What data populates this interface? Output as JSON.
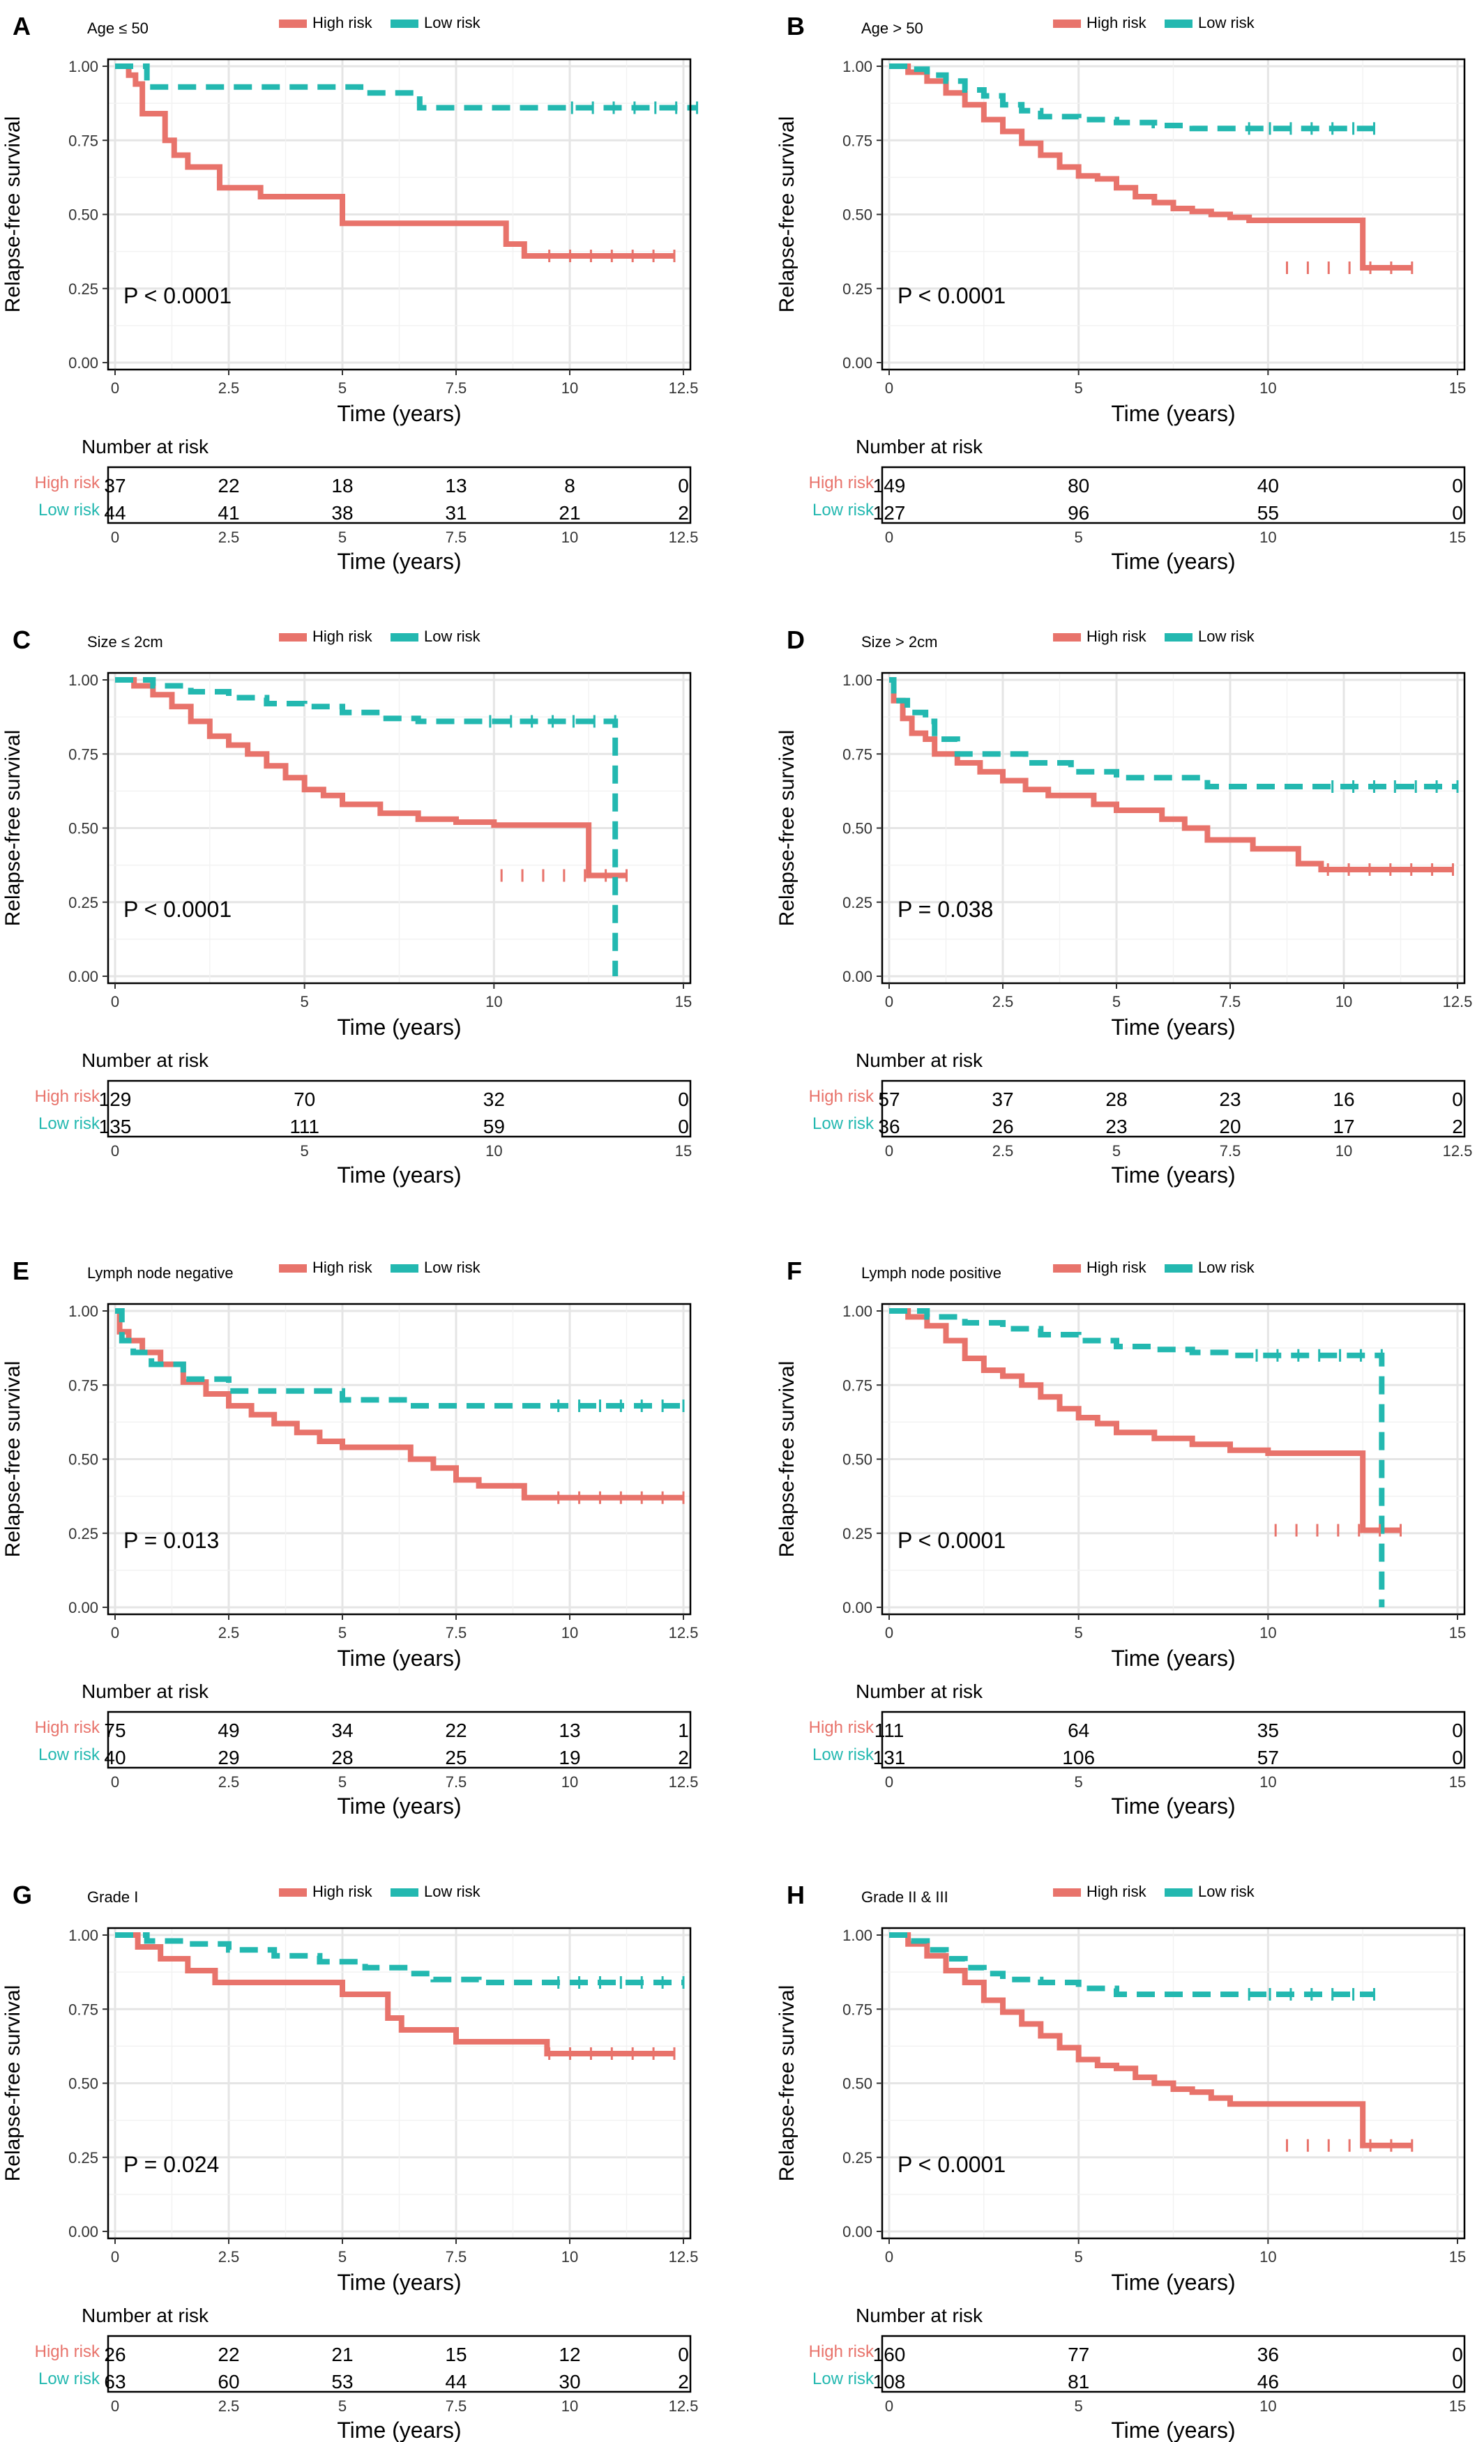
{
  "figure": {
    "legend": {
      "high_label": "High risk",
      "low_label": "Low risk"
    },
    "ylabel": "Relapse-free survival",
    "xlabel": "Time (years)",
    "risk_table_title": "Number at risk",
    "colors": {
      "high": "#E8736B",
      "low": "#23B8B0",
      "frame": "#000000",
      "grid": "#E5E5E5"
    }
  },
  "chart_data": [
    {
      "type": "line",
      "panel": "A",
      "subtitle": "Age ≤ 50",
      "pvalue": "P < 0.0001",
      "xlim": [
        0,
        12.5
      ],
      "ylim": [
        0,
        1
      ],
      "xticks": [
        "0",
        "2.5",
        "5",
        "7.5",
        "10",
        "12.5"
      ],
      "yticks": [
        "0.00",
        "0.25",
        "0.50",
        "0.75",
        "1.00"
      ],
      "series": [
        {
          "name": "High risk",
          "x": [
            0,
            0.3,
            0.45,
            0.6,
            0.9,
            1.1,
            1.3,
            1.6,
            2.3,
            3.2,
            5,
            6,
            7,
            8.2,
            8.6,
            9,
            12.3
          ],
          "y": [
            1,
            0.97,
            0.94,
            0.84,
            0.84,
            0.75,
            0.7,
            0.66,
            0.59,
            0.56,
            0.47,
            0.47,
            0.47,
            0.47,
            0.4,
            0.36,
            0.36
          ]
        },
        {
          "name": "Low risk",
          "x": [
            0,
            0.7,
            5.4,
            6.7,
            12.8
          ],
          "y": [
            1,
            0.93,
            0.91,
            0.86,
            0.86
          ]
        }
      ],
      "risk_times": [
        "0",
        "2.5",
        "5",
        "7.5",
        "10",
        "12.5"
      ],
      "risk_high": [
        "37",
        "22",
        "18",
        "13",
        "8",
        "0"
      ],
      "risk_low": [
        "44",
        "41",
        "38",
        "31",
        "21",
        "2"
      ]
    },
    {
      "type": "line",
      "panel": "B",
      "subtitle": "Age > 50",
      "pvalue": "P < 0.0001",
      "xlim": [
        0,
        15
      ],
      "ylim": [
        0,
        1
      ],
      "xticks": [
        "0",
        "5",
        "10",
        "15"
      ],
      "yticks": [
        "0.00",
        "0.25",
        "0.50",
        "0.75",
        "1.00"
      ],
      "series": [
        {
          "name": "High risk",
          "x": [
            0,
            0.5,
            1,
            1.5,
            2,
            2.5,
            3,
            3.5,
            4,
            4.5,
            5,
            5.5,
            6,
            6.5,
            7,
            7.5,
            8,
            8.5,
            9,
            9.5,
            10,
            11,
            12.5,
            13.8
          ],
          "y": [
            1,
            0.98,
            0.95,
            0.91,
            0.87,
            0.82,
            0.78,
            0.74,
            0.7,
            0.66,
            0.63,
            0.62,
            0.59,
            0.56,
            0.54,
            0.52,
            0.51,
            0.5,
            0.49,
            0.48,
            0.48,
            0.48,
            0.32,
            0.32
          ]
        },
        {
          "name": "Low risk",
          "x": [
            0,
            0.5,
            1,
            1.5,
            2,
            2.5,
            3,
            3.5,
            4,
            5,
            6,
            7,
            8,
            9,
            10,
            11,
            12.8
          ],
          "y": [
            1,
            0.99,
            0.97,
            0.95,
            0.92,
            0.9,
            0.87,
            0.85,
            0.83,
            0.82,
            0.81,
            0.8,
            0.79,
            0.79,
            0.79,
            0.79,
            0.79
          ]
        }
      ],
      "risk_times": [
        "0",
        "5",
        "10",
        "15"
      ],
      "risk_high": [
        "149",
        "80",
        "40",
        "0"
      ],
      "risk_low": [
        "127",
        "96",
        "55",
        "0"
      ]
    },
    {
      "type": "line",
      "panel": "C",
      "subtitle": "Size ≤ 2cm",
      "pvalue": "P < 0.0001",
      "xlim": [
        0,
        15
      ],
      "ylim": [
        0,
        1
      ],
      "xticks": [
        "0",
        "5",
        "10",
        "15"
      ],
      "yticks": [
        "0.00",
        "0.25",
        "0.50",
        "0.75",
        "1.00"
      ],
      "series": [
        {
          "name": "High risk",
          "x": [
            0,
            0.5,
            1,
            1.5,
            2,
            2.5,
            3,
            3.5,
            4,
            4.5,
            5,
            5.5,
            6,
            7,
            8,
            9,
            10,
            11,
            12.5,
            13.5
          ],
          "y": [
            1,
            0.98,
            0.95,
            0.91,
            0.86,
            0.81,
            0.78,
            0.75,
            0.71,
            0.67,
            0.63,
            0.61,
            0.58,
            0.55,
            0.53,
            0.52,
            0.51,
            0.51,
            0.34,
            0.34
          ]
        },
        {
          "name": "Low risk",
          "x": [
            0,
            1,
            2,
            3,
            4,
            5,
            6,
            7,
            8,
            9,
            10,
            11,
            12,
            13.2,
            13.2
          ],
          "y": [
            1,
            0.98,
            0.96,
            0.94,
            0.92,
            0.91,
            0.89,
            0.87,
            0.86,
            0.86,
            0.86,
            0.86,
            0.86,
            0.86,
            0
          ]
        }
      ],
      "risk_times": [
        "0",
        "5",
        "10",
        "15"
      ],
      "risk_high": [
        "129",
        "70",
        "32",
        "0"
      ],
      "risk_low": [
        "135",
        "111",
        "59",
        "0"
      ]
    },
    {
      "type": "line",
      "panel": "D",
      "subtitle": "Size > 2cm",
      "pvalue": "P = 0.038",
      "xlim": [
        0,
        12.5
      ],
      "ylim": [
        0,
        1
      ],
      "xticks": [
        "0",
        "2.5",
        "5",
        "7.5",
        "10",
        "12.5"
      ],
      "yticks": [
        "0.00",
        "0.25",
        "0.50",
        "0.75",
        "1.00"
      ],
      "series": [
        {
          "name": "High risk",
          "x": [
            0,
            0.1,
            0.3,
            0.5,
            0.8,
            1,
            1.5,
            2,
            2.5,
            3,
            3.5,
            4,
            4.5,
            5,
            6,
            6.5,
            7,
            8,
            9,
            9.5,
            10,
            11,
            12.4
          ],
          "y": [
            1,
            0.93,
            0.87,
            0.82,
            0.8,
            0.75,
            0.72,
            0.69,
            0.66,
            0.63,
            0.61,
            0.61,
            0.58,
            0.56,
            0.53,
            0.5,
            0.46,
            0.43,
            0.38,
            0.36,
            0.36,
            0.36,
            0.36
          ]
        },
        {
          "name": "Low risk",
          "x": [
            0,
            0.1,
            0.4,
            0.8,
            1,
            1.5,
            2,
            3,
            4,
            5,
            6,
            7,
            8,
            9,
            10,
            11,
            12.5
          ],
          "y": [
            1,
            0.93,
            0.89,
            0.86,
            0.8,
            0.75,
            0.75,
            0.72,
            0.69,
            0.67,
            0.67,
            0.64,
            0.64,
            0.64,
            0.64,
            0.64,
            0.64
          ]
        }
      ],
      "risk_times": [
        "0",
        "2.5",
        "5",
        "7.5",
        "10",
        "12.5"
      ],
      "risk_high": [
        "57",
        "37",
        "28",
        "23",
        "16",
        "0"
      ],
      "risk_low": [
        "36",
        "26",
        "23",
        "20",
        "17",
        "2"
      ]
    },
    {
      "type": "line",
      "panel": "E",
      "subtitle": "Lymph node negative",
      "pvalue": "P = 0.013",
      "xlim": [
        0,
        12.5
      ],
      "ylim": [
        0,
        1
      ],
      "xticks": [
        "0",
        "2.5",
        "5",
        "7.5",
        "10",
        "12.5"
      ],
      "yticks": [
        "0.00",
        "0.25",
        "0.50",
        "0.75",
        "1.00"
      ],
      "series": [
        {
          "name": "High risk",
          "x": [
            0,
            0.1,
            0.3,
            0.6,
            1,
            1.5,
            2,
            2.5,
            3,
            3.5,
            4,
            4.5,
            5,
            6,
            6.5,
            7,
            7.5,
            8,
            9,
            10,
            11,
            12.5
          ],
          "y": [
            1,
            0.93,
            0.9,
            0.86,
            0.82,
            0.76,
            0.72,
            0.68,
            0.65,
            0.62,
            0.59,
            0.56,
            0.54,
            0.54,
            0.5,
            0.47,
            0.43,
            0.41,
            0.37,
            0.37,
            0.37,
            0.37
          ]
        },
        {
          "name": "Low risk",
          "x": [
            0,
            0.15,
            0.4,
            0.8,
            1.5,
            2.5,
            4,
            5,
            6.5,
            7.5,
            8.5,
            10,
            11,
            12.5
          ],
          "y": [
            1,
            0.9,
            0.86,
            0.82,
            0.77,
            0.73,
            0.73,
            0.7,
            0.68,
            0.68,
            0.68,
            0.68,
            0.68,
            0.68
          ]
        }
      ],
      "risk_times": [
        "0",
        "2.5",
        "5",
        "7.5",
        "10",
        "12.5"
      ],
      "risk_high": [
        "75",
        "49",
        "34",
        "22",
        "13",
        "1"
      ],
      "risk_low": [
        "40",
        "29",
        "28",
        "25",
        "19",
        "2"
      ]
    },
    {
      "type": "line",
      "panel": "F",
      "subtitle": "Lymph node positive",
      "pvalue": "P < 0.0001",
      "xlim": [
        0,
        15
      ],
      "ylim": [
        0,
        1
      ],
      "xticks": [
        "0",
        "5",
        "10",
        "15"
      ],
      "yticks": [
        "0.00",
        "0.25",
        "0.50",
        "0.75",
        "1.00"
      ],
      "series": [
        {
          "name": "High risk",
          "x": [
            0,
            0.5,
            1,
            1.5,
            2,
            2.5,
            3,
            3.5,
            4,
            4.5,
            5,
            5.5,
            6,
            7,
            8,
            9,
            10,
            11,
            12.5,
            13.5
          ],
          "y": [
            1,
            0.98,
            0.95,
            0.9,
            0.84,
            0.8,
            0.78,
            0.75,
            0.71,
            0.67,
            0.64,
            0.62,
            0.59,
            0.57,
            0.55,
            0.53,
            0.52,
            0.52,
            0.26,
            0.26
          ]
        },
        {
          "name": "Low risk",
          "x": [
            0,
            1,
            2,
            3,
            4,
            5,
            6,
            7,
            8,
            9,
            10,
            11,
            12,
            13,
            13,
            13
          ],
          "y": [
            1,
            0.98,
            0.96,
            0.94,
            0.92,
            0.9,
            0.88,
            0.87,
            0.86,
            0.85,
            0.85,
            0.85,
            0.85,
            0.85,
            0.85,
            0
          ]
        }
      ],
      "risk_times": [
        "0",
        "5",
        "10",
        "15"
      ],
      "risk_high": [
        "111",
        "64",
        "35",
        "0"
      ],
      "risk_low": [
        "131",
        "106",
        "57",
        "0"
      ]
    },
    {
      "type": "line",
      "panel": "G",
      "subtitle": "Grade I",
      "pvalue": "P = 0.024",
      "xlim": [
        0,
        12.5
      ],
      "ylim": [
        0,
        1
      ],
      "xticks": [
        "0",
        "2.5",
        "5",
        "7.5",
        "10",
        "12.5"
      ],
      "yticks": [
        "0.00",
        "0.25",
        "0.50",
        "0.75",
        "1.00"
      ],
      "series": [
        {
          "name": "High risk",
          "x": [
            0,
            0.5,
            1,
            1.6,
            2.2,
            3,
            4,
            5,
            5.5,
            6,
            6.3,
            7,
            7.5,
            8,
            9,
            9.5,
            10,
            11,
            12.3
          ],
          "y": [
            1,
            0.96,
            0.92,
            0.88,
            0.84,
            0.84,
            0.84,
            0.8,
            0.8,
            0.72,
            0.68,
            0.68,
            0.64,
            0.64,
            0.64,
            0.6,
            0.6,
            0.6,
            0.6
          ]
        },
        {
          "name": "Low risk",
          "x": [
            0,
            0.7,
            1.5,
            2.5,
            3.5,
            4.5,
            5.5,
            6.5,
            7,
            8,
            9,
            10,
            11,
            12.5
          ],
          "y": [
            1,
            0.98,
            0.97,
            0.95,
            0.93,
            0.91,
            0.89,
            0.87,
            0.85,
            0.84,
            0.84,
            0.84,
            0.84,
            0.84
          ]
        }
      ],
      "risk_times": [
        "0",
        "2.5",
        "5",
        "7.5",
        "10",
        "12.5"
      ],
      "risk_high": [
        "26",
        "22",
        "21",
        "15",
        "12",
        "0"
      ],
      "risk_low": [
        "63",
        "60",
        "53",
        "44",
        "30",
        "2"
      ]
    },
    {
      "type": "line",
      "panel": "H",
      "subtitle": "Grade II & III",
      "pvalue": "P < 0.0001",
      "xlim": [
        0,
        15
      ],
      "ylim": [
        0,
        1
      ],
      "xticks": [
        "0",
        "5",
        "10",
        "15"
      ],
      "yticks": [
        "0.00",
        "0.25",
        "0.50",
        "0.75",
        "1.00"
      ],
      "series": [
        {
          "name": "High risk",
          "x": [
            0,
            0.5,
            1,
            1.5,
            2,
            2.5,
            3,
            3.5,
            4,
            4.5,
            5,
            5.5,
            6,
            6.5,
            7,
            7.5,
            8,
            8.5,
            9,
            10,
            11,
            12.5,
            13.8
          ],
          "y": [
            1,
            0.97,
            0.93,
            0.88,
            0.84,
            0.78,
            0.74,
            0.7,
            0.66,
            0.62,
            0.58,
            0.56,
            0.55,
            0.52,
            0.5,
            0.48,
            0.47,
            0.45,
            0.43,
            0.43,
            0.43,
            0.29,
            0.29
          ]
        },
        {
          "name": "Low risk",
          "x": [
            0,
            0.5,
            1,
            1.5,
            2,
            2.5,
            3,
            4,
            5,
            6,
            7,
            8,
            9,
            10,
            11,
            12.8
          ],
          "y": [
            1,
            0.98,
            0.95,
            0.92,
            0.89,
            0.87,
            0.85,
            0.84,
            0.82,
            0.8,
            0.8,
            0.8,
            0.8,
            0.8,
            0.8,
            0.8
          ]
        }
      ],
      "risk_times": [
        "0",
        "5",
        "10",
        "15"
      ],
      "risk_high": [
        "160",
        "77",
        "36",
        "0"
      ],
      "risk_low": [
        "108",
        "81",
        "46",
        "0"
      ]
    }
  ]
}
